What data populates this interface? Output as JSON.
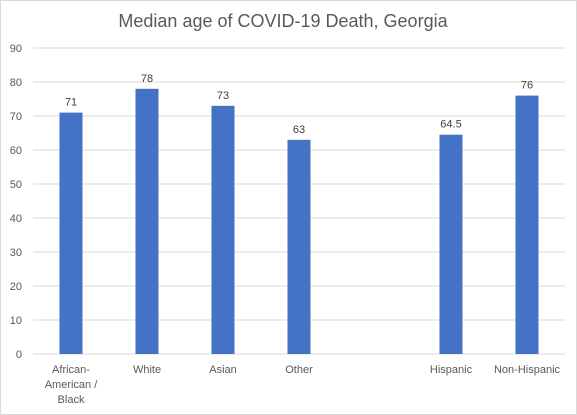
{
  "chart_data": {
    "type": "bar",
    "title": "Median age of COVID-19 Death, Georgia",
    "xlabel": "",
    "ylabel": "",
    "categories": [
      [
        "African-",
        "American /",
        "Black"
      ],
      [
        "White"
      ],
      [
        "Asian"
      ],
      [
        "Other"
      ],
      [
        ""
      ],
      [
        "Hispanic"
      ],
      [
        "Non-Hispanic"
      ]
    ],
    "values": [
      71,
      78,
      73,
      63,
      null,
      64.5,
      76
    ],
    "data_labels": [
      "71",
      "78",
      "73",
      "63",
      "",
      "64.5",
      "76"
    ],
    "yticks": [
      "0",
      "10",
      "20",
      "30",
      "40",
      "50",
      "60",
      "70",
      "80",
      "90"
    ],
    "ylim": [
      0,
      90
    ],
    "grid": true,
    "bar_color": "#4472C4",
    "grid_color": "#d9d9d9"
  }
}
